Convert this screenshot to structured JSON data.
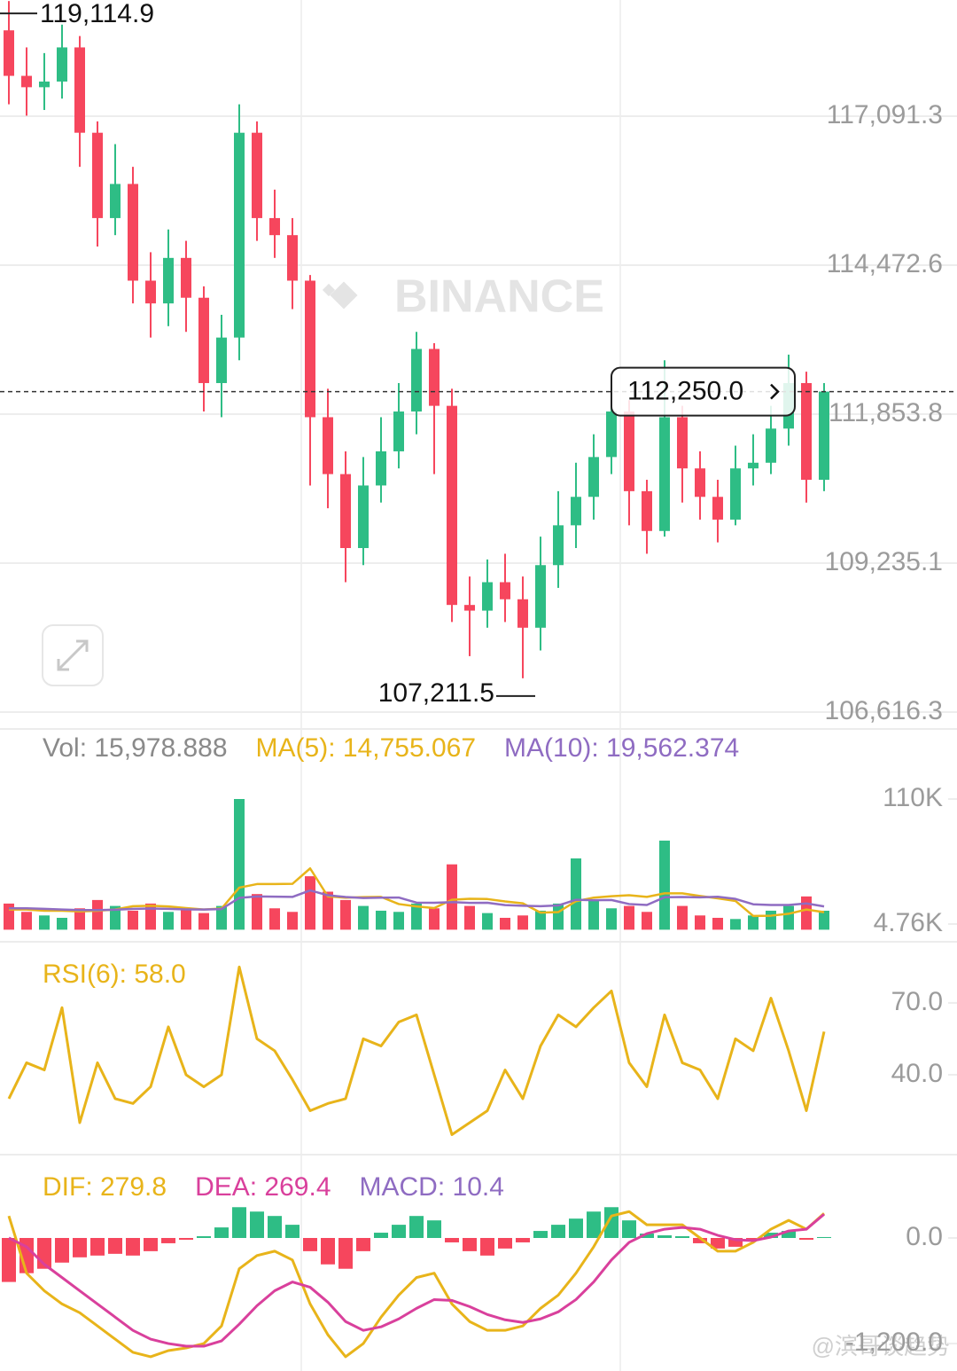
{
  "chart_data": [
    {
      "type": "candlestick",
      "watermark": "BINANCE",
      "up_color": "#2ebd85",
      "down_color": "#f6465d",
      "grid": true,
      "open": [
        118600,
        117800,
        117600,
        117700,
        118300,
        116800,
        115300,
        115900,
        114200,
        113800,
        114600,
        113900,
        112400,
        113200,
        116800,
        115300,
        115000,
        114200,
        111800,
        110800,
        109500,
        110600,
        111200,
        111900,
        113000,
        112000,
        108500,
        108400,
        108900,
        108600,
        108100,
        109200,
        109900,
        110400,
        111100,
        111900,
        110500,
        109800,
        111800,
        110900,
        110400,
        110000,
        110900,
        111000,
        111600,
        112400,
        110700
      ],
      "high": [
        119114.9,
        118300,
        118200,
        118700,
        118500,
        117000,
        116600,
        116200,
        114700,
        115100,
        114900,
        114100,
        113600,
        117300,
        117000,
        115800,
        115300,
        114300,
        112300,
        111200,
        111100,
        111800,
        112400,
        113300,
        113100,
        112300,
        109000,
        109300,
        109400,
        109000,
        109700,
        110500,
        111000,
        111500,
        112400,
        112100,
        110700,
        112800,
        112000,
        111200,
        110700,
        111300,
        111500,
        112000,
        112900,
        112600,
        112400
      ],
      "low": [
        117300,
        117100,
        117200,
        117400,
        116200,
        114800,
        115000,
        113800,
        113200,
        113400,
        113300,
        111900,
        111800,
        112800,
        114900,
        114600,
        113700,
        110600,
        110200,
        108900,
        109200,
        110300,
        110900,
        111500,
        110800,
        108200,
        107600,
        108100,
        108200,
        107211.5,
        107700,
        108800,
        109500,
        110000,
        110800,
        109900,
        109400,
        109700,
        110300,
        110000,
        109600,
        109900,
        110600,
        110800,
        111300,
        110300,
        110500
      ],
      "close": [
        117800,
        117600,
        117700,
        118300,
        116800,
        115300,
        115900,
        114200,
        113800,
        114600,
        113900,
        112400,
        113200,
        116800,
        115300,
        115000,
        114200,
        111800,
        110800,
        109500,
        110600,
        111200,
        111900,
        113000,
        112000,
        108500,
        108400,
        108900,
        108600,
        108100,
        109200,
        109900,
        110400,
        111100,
        111900,
        110500,
        109800,
        111800,
        110900,
        110400,
        110000,
        110900,
        111000,
        111600,
        112400,
        110700,
        112250
      ],
      "ylim": [
        106351.6,
        119133.2
      ],
      "yticks": [
        {
          "value": 117091.3,
          "label": "117,091.3"
        },
        {
          "value": 114472.6,
          "label": "114,472.6"
        },
        {
          "value": 111853.8,
          "label": "111,853.8"
        },
        {
          "value": 109235.1,
          "label": "109,235.1"
        },
        {
          "value": 106616.3,
          "label": "106,616.3"
        }
      ],
      "annotations": {
        "high": {
          "value": 119114.9,
          "label": "119,114.9"
        },
        "low": {
          "value": 107211.5,
          "label": "107,211.5"
        },
        "last": {
          "value": 112250,
          "label": "112,250.0"
        }
      }
    },
    {
      "type": "bar",
      "ylim": [
        -8675,
        133140
      ],
      "yticks": [
        {
          "value": 110000,
          "label": "110K"
        },
        {
          "value": 4760,
          "label": "4.76K"
        }
      ],
      "series": [
        {
          "legend": "Vol: 15,978.888",
          "color": "#8a8a8a",
          "values": [
            22000,
            15000,
            12000,
            10000,
            18000,
            25000,
            20000,
            16000,
            22000,
            15000,
            18000,
            14000,
            20000,
            110000,
            30000,
            18000,
            15000,
            45000,
            32000,
            25000,
            20000,
            16000,
            15000,
            22000,
            18000,
            55000,
            20000,
            14000,
            10000,
            12000,
            16000,
            22000,
            60000,
            25000,
            18000,
            20000,
            15000,
            75000,
            20000,
            12000,
            10000,
            9000,
            12000,
            16000,
            20000,
            28000,
            15978.888
          ]
        },
        {
          "legend": "MA(5): 14,755.067",
          "color": "#e8b41a",
          "values": [
            17000,
            17000,
            16000,
            16000,
            15400,
            16000,
            17000,
            19800,
            20200,
            19600,
            18200,
            17000,
            17800,
            35400,
            38400,
            38400,
            38600,
            51600,
            28000,
            27000,
            27400,
            27600,
            21600,
            19600,
            18200,
            25200,
            26000,
            25800,
            23800,
            22200,
            14400,
            14800,
            24000,
            27000,
            28200,
            29000,
            27600,
            30600,
            30600,
            28400,
            26400,
            24200,
            11600,
            11800,
            13400,
            17000,
            14755.067
          ]
        },
        {
          "legend": "MA(10): 19,562.374",
          "color": "#8f6cc2",
          "values": [
            18000,
            18000,
            17500,
            17000,
            16500,
            16500,
            16800,
            17500,
            17800,
            17500,
            17100,
            17000,
            17400,
            26800,
            28000,
            27800,
            27600,
            33100,
            29000,
            27500,
            26700,
            27000,
            27100,
            22800,
            22700,
            23200,
            22600,
            22700,
            20700,
            20200,
            19800,
            20400,
            25200,
            24800,
            25000,
            21600,
            20800,
            27300,
            27500,
            27200,
            27700,
            25900,
            21400,
            20800,
            20800,
            22100,
            19562.374
          ]
        }
      ]
    },
    {
      "type": "line",
      "ylim": [
        7.4,
        90.7
      ],
      "yticks": [
        {
          "value": 70,
          "label": "70.0"
        },
        {
          "value": 40,
          "label": "40.0"
        }
      ],
      "series": [
        {
          "legend": "RSI(6): 58.0",
          "color": "#e8b41a",
          "values": [
            30,
            45,
            42,
            68,
            20,
            45,
            30,
            28,
            35,
            60,
            40,
            35,
            40,
            85,
            55,
            50,
            38,
            25,
            28,
            30,
            55,
            52,
            62,
            65,
            40,
            15,
            20,
            25,
            42,
            30,
            52,
            65,
            60,
            68,
            75,
            45,
            35,
            65,
            45,
            42,
            30,
            55,
            50,
            72,
            50,
            25,
            58
          ]
        }
      ]
    },
    {
      "type": "macd",
      "ylim": [
        -1512,
        766
      ],
      "up_color": "#2ebd85",
      "down_color": "#f6465d",
      "yticks": [
        {
          "value": 0,
          "label": "0.0"
        },
        {
          "value": -1200,
          "label": "-1,200.0"
        }
      ],
      "series": [
        {
          "legend": "DIF: 279.8",
          "color": "#e8b41a",
          "values": [
            250,
            -400,
            -600,
            -750,
            -850,
            -1000,
            -1150,
            -1300,
            -1350,
            -1280,
            -1250,
            -1200,
            -1000,
            -350,
            -200,
            -150,
            -250,
            -750,
            -1100,
            -1350,
            -1200,
            -900,
            -650,
            -450,
            -400,
            -750,
            -950,
            -1050,
            -1050,
            -1000,
            -800,
            -650,
            -400,
            -100,
            250,
            300,
            150,
            150,
            150,
            0,
            -150,
            -150,
            -50,
            100,
            200,
            100,
            279.8
          ]
        },
        {
          "legend": "DEA: 269.4",
          "color": "#d9409c",
          "values": [
            0,
            -100,
            -300,
            -450,
            -600,
            -750,
            -900,
            -1050,
            -1150,
            -1200,
            -1230,
            -1230,
            -1170,
            -980,
            -770,
            -600,
            -500,
            -560,
            -730,
            -950,
            -1050,
            -1010,
            -920,
            -800,
            -700,
            -710,
            -780,
            -870,
            -930,
            -960,
            -920,
            -840,
            -700,
            -500,
            -250,
            -50,
            50,
            100,
            120,
            100,
            30,
            -20,
            -30,
            10,
            80,
            100,
            269.4
          ]
        },
        {
          "legend": "MACD: 10.4",
          "color": "#8f6cc2",
          "values": [
            -500,
            -400,
            -350,
            -280,
            -220,
            -200,
            -180,
            -200,
            -150,
            -60,
            -20,
            20,
            120,
            350,
            300,
            250,
            150,
            -150,
            -300,
            -350,
            -150,
            60,
            150,
            250,
            200,
            -50,
            -150,
            -200,
            -120,
            -50,
            80,
            150,
            220,
            300,
            350,
            200,
            50,
            30,
            20,
            -60,
            -120,
            -100,
            -20,
            60,
            80,
            -20,
            10.4
          ]
        }
      ]
    }
  ],
  "watermark": "@滨哥谈趋势"
}
